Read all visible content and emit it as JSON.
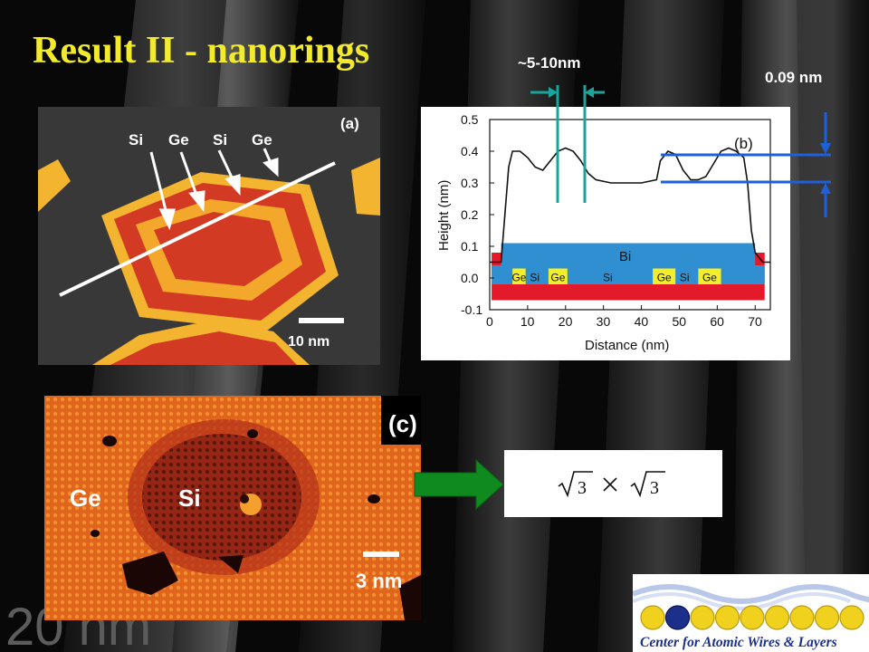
{
  "slide": {
    "title": "Result II - nanorings",
    "annotation_width": "~5-10nm",
    "annotation_height": "0.09 nm"
  },
  "panel_a": {
    "label": "(a)",
    "arrow_labels": [
      "Si",
      "Ge",
      "Si",
      "Ge"
    ],
    "scale_bar": "10 nm"
  },
  "panel_b": {
    "label": "(b)",
    "layer_labels": {
      "bi": "Bi",
      "left": [
        "Ge",
        "Si",
        "Ge"
      ],
      "middle": "Si",
      "right": [
        "Ge",
        "Si",
        "Ge"
      ]
    }
  },
  "panel_c": {
    "label": "(c)",
    "ge_label": "Ge",
    "si_label": "Si",
    "scale_bar": "3 nm"
  },
  "background_text": "20 nm",
  "logo": {
    "text": "Center for Atomic Wires & Layers",
    "atom_count": 9
  },
  "colors": {
    "title": "#f2ea2c",
    "teal_markers": "#1aa59a",
    "blue_markers": "#1f5fd8",
    "arrow_green": "#0f8a1e",
    "bi_layer": "#2f8fd0",
    "ge_layer": "#f3ee2a",
    "substrate": "#e21a2a"
  },
  "chart_data": {
    "type": "line",
    "title": "",
    "xlabel": "Distance (nm)",
    "ylabel": "Height (nm)",
    "xlim": [
      0,
      74
    ],
    "ylim": [
      -0.1,
      0.5
    ],
    "xticks": [
      0,
      10,
      20,
      30,
      40,
      50,
      60,
      70
    ],
    "yticks": [
      -0.1,
      0.0,
      0.1,
      0.2,
      0.3,
      0.4,
      0.5
    ],
    "grid": false,
    "series": [
      {
        "name": "",
        "x": [
          0,
          3,
          4,
          5,
          6,
          8,
          10,
          12,
          14,
          16,
          18,
          20,
          22,
          24,
          26,
          28,
          32,
          36,
          40,
          44,
          45,
          47,
          49,
          51,
          53,
          55,
          57,
          59,
          61,
          63,
          65,
          67,
          68,
          69,
          70,
          72,
          74
        ],
        "y": [
          0.05,
          0.05,
          0.2,
          0.35,
          0.4,
          0.4,
          0.38,
          0.35,
          0.34,
          0.37,
          0.4,
          0.41,
          0.4,
          0.37,
          0.33,
          0.31,
          0.3,
          0.3,
          0.3,
          0.31,
          0.37,
          0.4,
          0.39,
          0.34,
          0.31,
          0.31,
          0.32,
          0.36,
          0.4,
          0.41,
          0.4,
          0.38,
          0.3,
          0.15,
          0.08,
          0.05,
          0.05
        ]
      }
    ]
  }
}
